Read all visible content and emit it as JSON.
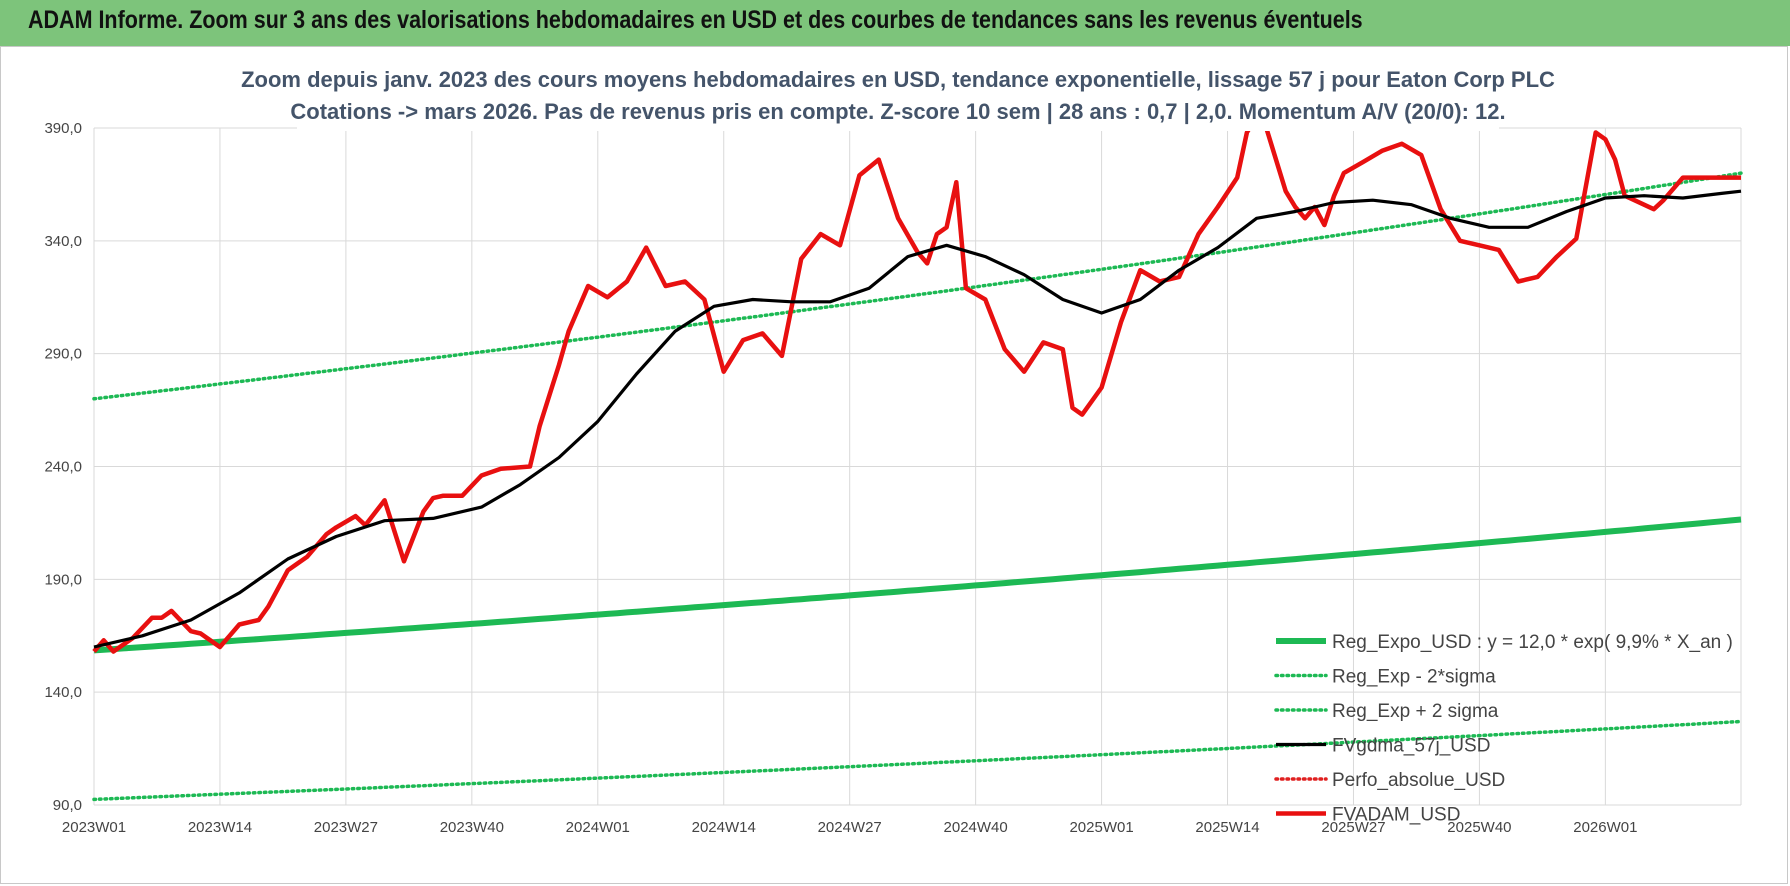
{
  "header": {
    "title": "ADAM Informe. Zoom sur 3 ans des valorisations hebdomadaires en USD et des courbes de tendances sans les revenus éventuels"
  },
  "chart_data": {
    "type": "line",
    "title": [
      "Zoom depuis janv. 2023 des cours moyens hebdomadaires en USD, tendance exponentielle, lissage 57 j pour Eaton Corp PLC",
      "Cotations -> mars 2026. Pas de revenus pris en compte. Z-score 10 sem | 28 ans : 0,7 | 2,0. Momentum A/V (20/0): 12."
    ],
    "y_ticks": [
      "390,0",
      "340,0",
      "290,0",
      "240,0",
      "190,0",
      "140,0",
      "90,0"
    ],
    "ylim": [
      90,
      390
    ],
    "x_ticks": [
      "2023W01",
      "2023W14",
      "2023W27",
      "2023W40",
      "2024W01",
      "2024W14",
      "2024W27",
      "2024W40",
      "2025W01",
      "2025W14",
      "2025W27",
      "2025W40",
      "2026W01"
    ],
    "x_range_weeks": [
      0,
      170
    ],
    "grid": true,
    "legend_position": "bottom-right",
    "colors": {
      "reg_expo": "#1db954",
      "reg_sigma": "#1db954",
      "fvgdma": "#000000",
      "perfo": "#e02020",
      "fvadam": "#e81010",
      "title_color": "#44546a"
    },
    "series": [
      {
        "name": "Reg_Expo_USD : y = 12,0 * exp( 9,9% *  X_an )",
        "style": "solid-thick",
        "x": [
          0,
          170
        ],
        "values": [
          158.5,
          216.5
        ],
        "interpolation": "exponential"
      },
      {
        "name": "Reg_Exp - 2*sigma",
        "style": "dotted",
        "x": [
          0,
          170
        ],
        "values": [
          92.5,
          127
        ],
        "interpolation": "exponential"
      },
      {
        "name": "Reg_Exp + 2 sigma",
        "style": "dotted",
        "x": [
          0,
          170
        ],
        "values": [
          270,
          370
        ],
        "interpolation": "exponential"
      },
      {
        "name": "FVgdma_57j_USD",
        "style": "solid",
        "x": [
          0,
          5,
          10,
          15,
          20,
          25,
          30,
          35,
          40,
          44,
          48,
          52,
          56,
          60,
          64,
          68,
          72,
          76,
          80,
          84,
          88,
          92,
          96,
          100,
          104,
          108,
          112,
          116,
          120,
          124,
          128,
          132,
          136,
          140,
          144,
          148,
          152,
          156,
          160,
          164,
          168,
          170
        ],
        "values": [
          160,
          165,
          172,
          184,
          199,
          209,
          216,
          217,
          222,
          232,
          244,
          260,
          281,
          300,
          311,
          314,
          313,
          313,
          319,
          333,
          338,
          333,
          325,
          314,
          308,
          314,
          327,
          337,
          350,
          353,
          357,
          358,
          356,
          350,
          346,
          346,
          353,
          359,
          360,
          359,
          361,
          362
        ]
      },
      {
        "name": "Perfo_absolue_USD",
        "style": "dotted",
        "x": [],
        "values": []
      },
      {
        "name": "FVADAM_USD",
        "style": "solid-thick",
        "x": [
          0,
          1,
          2,
          4,
          6,
          7,
          8,
          10,
          11,
          13,
          14,
          15,
          17,
          18,
          20,
          21,
          22,
          24,
          25,
          27,
          28,
          30,
          32,
          34,
          35,
          36,
          38,
          40,
          42,
          45,
          46,
          48,
          49,
          51,
          53,
          55,
          57,
          59,
          61,
          63,
          65,
          67,
          69,
          71,
          73,
          75,
          77,
          79,
          81,
          83,
          85,
          86,
          87,
          88,
          89,
          90,
          92,
          94,
          96,
          98,
          100,
          101,
          102,
          104,
          106,
          108,
          110,
          112,
          114,
          116,
          118,
          119,
          120,
          121,
          123,
          124,
          125,
          126,
          127,
          128,
          129,
          131,
          133,
          135,
          137,
          139,
          141,
          143,
          145,
          147,
          149,
          151,
          153,
          155,
          156,
          157,
          158,
          160,
          161,
          162,
          164,
          166,
          168,
          170
        ],
        "values": [
          158,
          163,
          158,
          164,
          173,
          173,
          176,
          167,
          166,
          160,
          165,
          170,
          172,
          178,
          194,
          197,
          200,
          210,
          213,
          218,
          214,
          225,
          198,
          220,
          226,
          227,
          227,
          236,
          239,
          240,
          258,
          285,
          300,
          320,
          315,
          322,
          337,
          320,
          322,
          314,
          282,
          296,
          299,
          289,
          332,
          343,
          338,
          369,
          376,
          350,
          335,
          330,
          343,
          346,
          366,
          319,
          314,
          292,
          282,
          295,
          292,
          266,
          263,
          275,
          304,
          327,
          322,
          324,
          343,
          355,
          368,
          388,
          395,
          390,
          362,
          355,
          350,
          355,
          347,
          360,
          370,
          375,
          380,
          383,
          378,
          354,
          340,
          338,
          336,
          322,
          324,
          333,
          341,
          388,
          385,
          376,
          360,
          356,
          354,
          358,
          368,
          368,
          368,
          368
        ]
      }
    ]
  }
}
